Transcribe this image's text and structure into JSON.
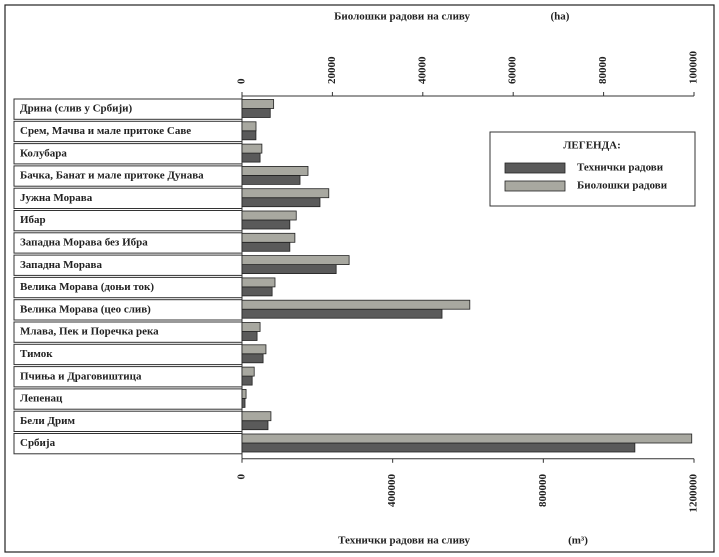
{
  "chart_data": {
    "type": "bar",
    "orientation": "horizontal",
    "x_label": "Технички радови на сливу",
    "x_unit": "(m³)",
    "x2_label": "Биолошки радови на сливу",
    "x2_unit": "(ha)",
    "legend_title": "ЛЕГЕНДА:",
    "categories": [
      "Дрина (слив у Србији)",
      "Срем, Мачва и мале притоке Саве",
      "Колубара",
      "Бачка, Банат и мале притоке Дунава",
      "Јужна Морава",
      "Ибар",
      "Западна Морава без Ибра",
      "Западна Морава",
      "Велика Морава (доњи ток)",
      "Велика Морава (цео слив)",
      "Млава, Пек и Поречка река",
      "Тимок",
      "Пчиња и Драговиштица",
      "Лепенац",
      "Бели Дрим",
      "Србија"
    ],
    "series": [
      {
        "name": "Технички радови",
        "color": "#5a5a5a",
        "axis": "x",
        "values": [
          75000,
          37000,
          48000,
          154000,
          207000,
          127000,
          127000,
          250000,
          80000,
          531000,
          40000,
          56000,
          27000,
          8000,
          69000,
          1043000
        ]
      },
      {
        "name": "Биолошки радови",
        "color": "#a8a8a0",
        "axis": "x2",
        "values": [
          7000,
          3100,
          4400,
          14600,
          19200,
          12000,
          11700,
          23700,
          7300,
          50400,
          4000,
          5300,
          2700,
          900,
          6400,
          99500
        ]
      }
    ],
    "xlim": [
      0,
      1200000
    ],
    "xticks": [
      0,
      400000,
      800000,
      1200000
    ],
    "x2lim": [
      0,
      100000
    ],
    "x2ticks": [
      0,
      20000,
      40000,
      60000,
      80000,
      100000
    ],
    "grid": false
  }
}
